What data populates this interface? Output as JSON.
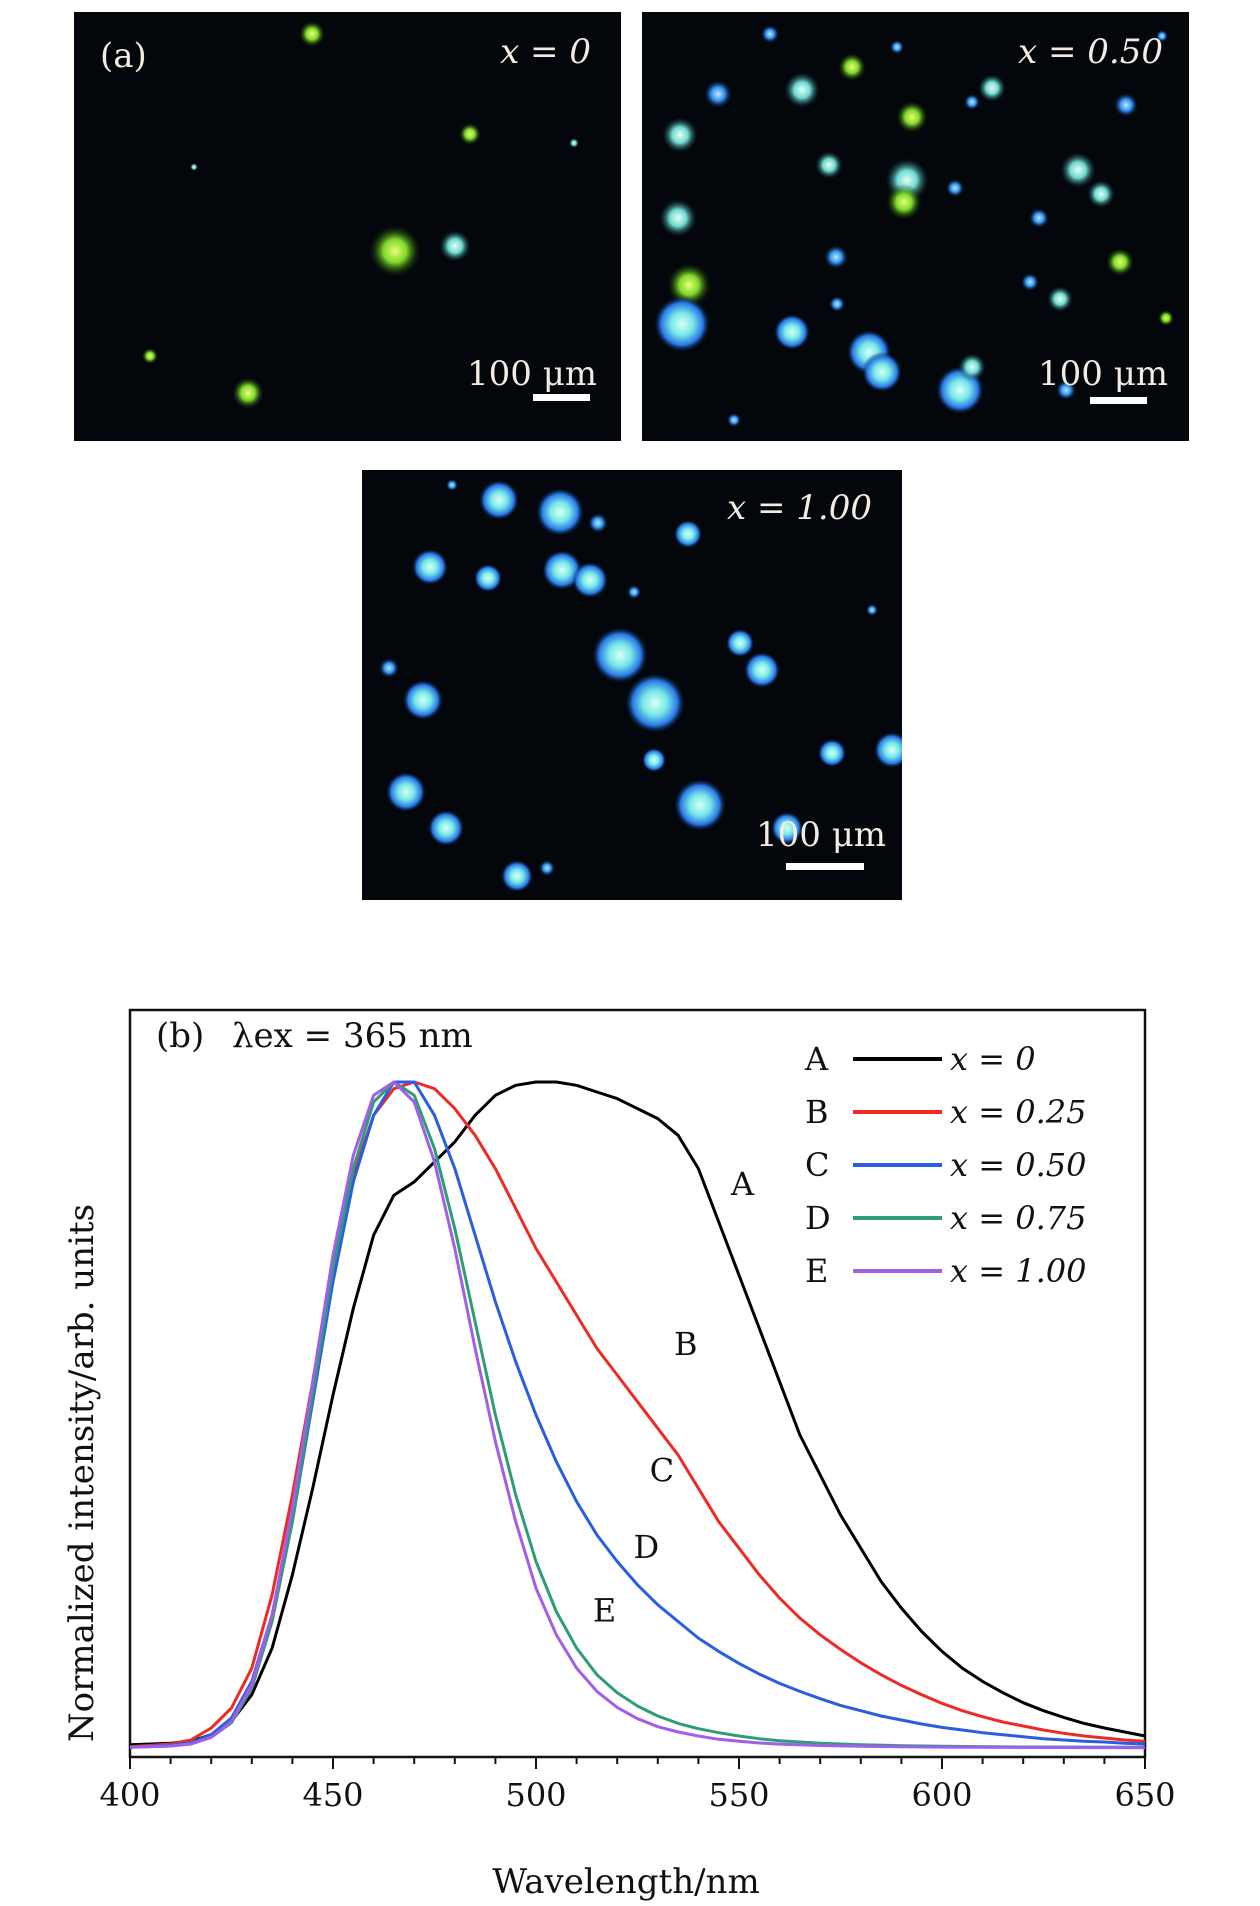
{
  "panel_a": {
    "label": "(a)",
    "images": [
      {
        "x_label": "x = 0",
        "scale": "100 μm"
      },
      {
        "x_label": "x = 0.50",
        "scale": "100 μm"
      },
      {
        "x_label": "x = 1.00",
        "scale": "100 μm"
      }
    ]
  },
  "chart_data": {
    "type": "line",
    "panel_label": "(b)",
    "annotation": "λex = 365 nm",
    "xlabel": "Wavelength/nm",
    "ylabel": "Normalized intensity/arb. units",
    "xlim": [
      400,
      650
    ],
    "ylim": [
      0,
      1.0
    ],
    "xticks": [
      400,
      450,
      500,
      550,
      600,
      650
    ],
    "legend_position": "top-right",
    "series": [
      {
        "name": "A",
        "legend": "x = 0",
        "color": "#000000",
        "points": [
          [
            400,
            0.005
          ],
          [
            410,
            0.007
          ],
          [
            415,
            0.01
          ],
          [
            420,
            0.02
          ],
          [
            425,
            0.04
          ],
          [
            430,
            0.08
          ],
          [
            435,
            0.15
          ],
          [
            440,
            0.26
          ],
          [
            445,
            0.39
          ],
          [
            450,
            0.53
          ],
          [
            455,
            0.66
          ],
          [
            460,
            0.77
          ],
          [
            465,
            0.83
          ],
          [
            470,
            0.85
          ],
          [
            475,
            0.88
          ],
          [
            480,
            0.91
          ],
          [
            485,
            0.95
          ],
          [
            490,
            0.98
          ],
          [
            495,
            0.995
          ],
          [
            500,
            1.0
          ],
          [
            505,
            1.0
          ],
          [
            510,
            0.995
          ],
          [
            515,
            0.985
          ],
          [
            520,
            0.975
          ],
          [
            525,
            0.96
          ],
          [
            530,
            0.945
          ],
          [
            535,
            0.92
          ],
          [
            540,
            0.87
          ],
          [
            545,
            0.79
          ],
          [
            550,
            0.71
          ],
          [
            555,
            0.63
          ],
          [
            560,
            0.55
          ],
          [
            565,
            0.47
          ],
          [
            570,
            0.41
          ],
          [
            575,
            0.35
          ],
          [
            580,
            0.3
          ],
          [
            585,
            0.25
          ],
          [
            590,
            0.21
          ],
          [
            595,
            0.175
          ],
          [
            600,
            0.145
          ],
          [
            605,
            0.12
          ],
          [
            610,
            0.1
          ],
          [
            615,
            0.083
          ],
          [
            620,
            0.068
          ],
          [
            625,
            0.056
          ],
          [
            630,
            0.046
          ],
          [
            635,
            0.037
          ],
          [
            640,
            0.03
          ],
          [
            645,
            0.024
          ],
          [
            650,
            0.018
          ]
        ]
      },
      {
        "name": "B",
        "legend": "x = 0.25",
        "color": "#ee2a24",
        "points": [
          [
            400,
            0.002
          ],
          [
            410,
            0.006
          ],
          [
            415,
            0.012
          ],
          [
            420,
            0.03
          ],
          [
            425,
            0.06
          ],
          [
            430,
            0.12
          ],
          [
            435,
            0.23
          ],
          [
            440,
            0.38
          ],
          [
            445,
            0.55
          ],
          [
            450,
            0.72
          ],
          [
            455,
            0.86
          ],
          [
            460,
            0.95
          ],
          [
            465,
            0.99
          ],
          [
            470,
            1.0
          ],
          [
            475,
            0.99
          ],
          [
            480,
            0.96
          ],
          [
            485,
            0.92
          ],
          [
            490,
            0.87
          ],
          [
            495,
            0.81
          ],
          [
            500,
            0.75
          ],
          [
            505,
            0.7
          ],
          [
            510,
            0.65
          ],
          [
            515,
            0.6
          ],
          [
            520,
            0.56
          ],
          [
            525,
            0.52
          ],
          [
            530,
            0.48
          ],
          [
            535,
            0.44
          ],
          [
            540,
            0.39
          ],
          [
            545,
            0.34
          ],
          [
            550,
            0.3
          ],
          [
            555,
            0.26
          ],
          [
            560,
            0.225
          ],
          [
            565,
            0.195
          ],
          [
            570,
            0.17
          ],
          [
            575,
            0.148
          ],
          [
            580,
            0.128
          ],
          [
            585,
            0.11
          ],
          [
            590,
            0.094
          ],
          [
            595,
            0.08
          ],
          [
            600,
            0.067
          ],
          [
            605,
            0.056
          ],
          [
            610,
            0.047
          ],
          [
            615,
            0.039
          ],
          [
            620,
            0.033
          ],
          [
            625,
            0.027
          ],
          [
            630,
            0.022
          ],
          [
            635,
            0.018
          ],
          [
            640,
            0.015
          ],
          [
            645,
            0.012
          ],
          [
            650,
            0.01
          ]
        ]
      },
      {
        "name": "C",
        "legend": "x = 0.50",
        "color": "#2a5de0",
        "points": [
          [
            400,
            0.001
          ],
          [
            410,
            0.004
          ],
          [
            415,
            0.008
          ],
          [
            420,
            0.02
          ],
          [
            425,
            0.045
          ],
          [
            430,
            0.1
          ],
          [
            435,
            0.2
          ],
          [
            440,
            0.34
          ],
          [
            445,
            0.52
          ],
          [
            450,
            0.7
          ],
          [
            455,
            0.85
          ],
          [
            460,
            0.95
          ],
          [
            465,
            1.0
          ],
          [
            470,
            1.0
          ],
          [
            475,
            0.95
          ],
          [
            480,
            0.87
          ],
          [
            485,
            0.77
          ],
          [
            490,
            0.67
          ],
          [
            495,
            0.58
          ],
          [
            500,
            0.5
          ],
          [
            505,
            0.43
          ],
          [
            510,
            0.37
          ],
          [
            515,
            0.32
          ],
          [
            520,
            0.28
          ],
          [
            525,
            0.245
          ],
          [
            530,
            0.215
          ],
          [
            535,
            0.19
          ],
          [
            540,
            0.165
          ],
          [
            545,
            0.145
          ],
          [
            550,
            0.127
          ],
          [
            555,
            0.111
          ],
          [
            560,
            0.097
          ],
          [
            565,
            0.085
          ],
          [
            570,
            0.074
          ],
          [
            575,
            0.064
          ],
          [
            580,
            0.056
          ],
          [
            585,
            0.048
          ],
          [
            590,
            0.042
          ],
          [
            595,
            0.036
          ],
          [
            600,
            0.031
          ],
          [
            605,
            0.027
          ],
          [
            610,
            0.023
          ],
          [
            615,
            0.02
          ],
          [
            620,
            0.017
          ],
          [
            625,
            0.014
          ],
          [
            630,
            0.012
          ],
          [
            635,
            0.01
          ],
          [
            640,
            0.009
          ],
          [
            645,
            0.007
          ],
          [
            650,
            0.006
          ]
        ]
      },
      {
        "name": "D",
        "legend": "x = 0.75",
        "color": "#2f9c78",
        "points": [
          [
            400,
            0.001
          ],
          [
            410,
            0.003
          ],
          [
            415,
            0.006
          ],
          [
            420,
            0.016
          ],
          [
            425,
            0.038
          ],
          [
            430,
            0.09
          ],
          [
            435,
            0.19
          ],
          [
            440,
            0.34
          ],
          [
            445,
            0.53
          ],
          [
            450,
            0.72
          ],
          [
            455,
            0.87
          ],
          [
            460,
            0.97
          ],
          [
            465,
            1.0
          ],
          [
            470,
            0.98
          ],
          [
            475,
            0.9
          ],
          [
            480,
            0.78
          ],
          [
            485,
            0.64
          ],
          [
            490,
            0.5
          ],
          [
            495,
            0.38
          ],
          [
            500,
            0.28
          ],
          [
            505,
            0.205
          ],
          [
            510,
            0.15
          ],
          [
            515,
            0.11
          ],
          [
            520,
            0.083
          ],
          [
            525,
            0.063
          ],
          [
            530,
            0.048
          ],
          [
            535,
            0.037
          ],
          [
            540,
            0.029
          ],
          [
            545,
            0.023
          ],
          [
            550,
            0.018
          ],
          [
            555,
            0.014
          ],
          [
            560,
            0.011
          ],
          [
            565,
            0.009
          ],
          [
            570,
            0.007
          ],
          [
            575,
            0.006
          ],
          [
            580,
            0.005
          ],
          [
            590,
            0.0035
          ],
          [
            600,
            0.0025
          ],
          [
            620,
            0.0015
          ],
          [
            650,
            0.001
          ]
        ]
      },
      {
        "name": "E",
        "legend": "x = 1.00",
        "color": "#a15ee8",
        "points": [
          [
            400,
            0.001
          ],
          [
            410,
            0.003
          ],
          [
            415,
            0.006
          ],
          [
            420,
            0.016
          ],
          [
            425,
            0.04
          ],
          [
            430,
            0.095
          ],
          [
            435,
            0.2
          ],
          [
            440,
            0.36
          ],
          [
            445,
            0.55
          ],
          [
            450,
            0.74
          ],
          [
            455,
            0.89
          ],
          [
            460,
            0.98
          ],
          [
            465,
            1.0
          ],
          [
            470,
            0.97
          ],
          [
            475,
            0.88
          ],
          [
            480,
            0.75
          ],
          [
            485,
            0.6
          ],
          [
            490,
            0.46
          ],
          [
            495,
            0.34
          ],
          [
            500,
            0.24
          ],
          [
            505,
            0.17
          ],
          [
            510,
            0.12
          ],
          [
            515,
            0.085
          ],
          [
            520,
            0.061
          ],
          [
            525,
            0.044
          ],
          [
            530,
            0.032
          ],
          [
            535,
            0.024
          ],
          [
            540,
            0.018
          ],
          [
            545,
            0.013
          ],
          [
            550,
            0.01
          ],
          [
            555,
            0.0075
          ],
          [
            560,
            0.0058
          ],
          [
            570,
            0.0038
          ],
          [
            580,
            0.0026
          ],
          [
            600,
            0.0014
          ],
          [
            650,
            0.0005
          ]
        ]
      }
    ],
    "curve_labels": [
      {
        "name": "A",
        "x": 548,
        "y": 0.83
      },
      {
        "name": "B",
        "x": 534,
        "y": 0.59
      },
      {
        "name": "C",
        "x": 528,
        "y": 0.4
      },
      {
        "name": "D",
        "x": 524,
        "y": 0.285
      },
      {
        "name": "E",
        "x": 514,
        "y": 0.19
      }
    ]
  }
}
